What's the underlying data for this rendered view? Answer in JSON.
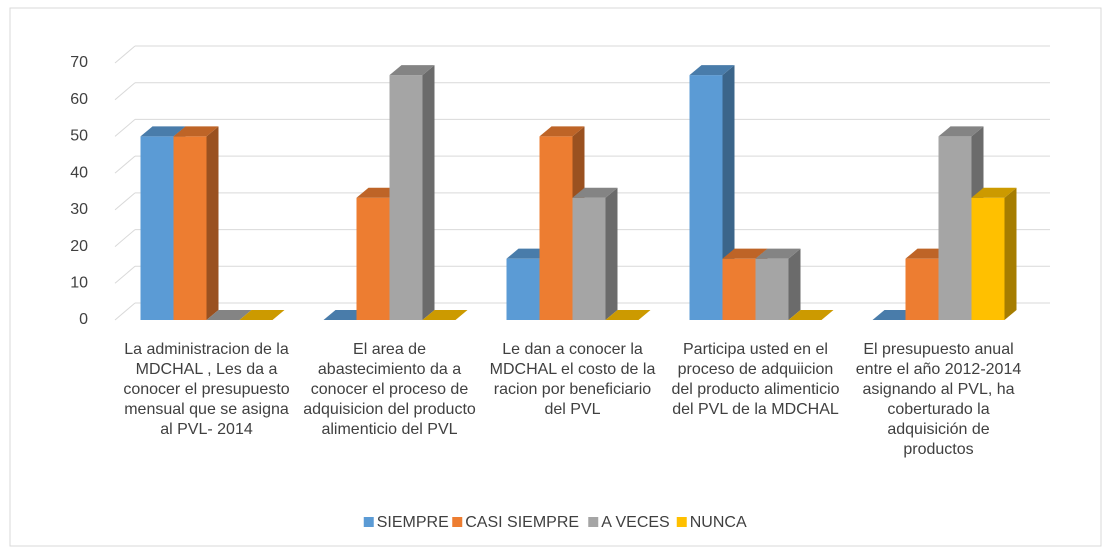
{
  "chart_data": {
    "type": "bar3d",
    "categories": [
      "La administracion de la MDCHAL , Les da a conocer el presupuesto mensual que se asigna al PVL- 2014",
      "El area de abastecimiento da a conocer el proceso de adquisicion del producto alimenticio del PVL",
      "Le dan a conocer la MDCHAL el costo de la racion por beneficiario del PVL",
      "Participa usted en el proceso de adquiicion del producto alimenticio del PVL de la MDCHAL",
      "El presupuesto anual entre el año 2012-2014 asignando al PVL, ha coberturado la adquisición de productos"
    ],
    "series": [
      {
        "name": "SIEMPRE",
        "color": "#5b9bd5",
        "values": [
          50,
          0,
          16.7,
          66.7,
          0
        ]
      },
      {
        "name": "CASI SIEMPRE",
        "color": "#ed7d31",
        "values": [
          50,
          33.3,
          50,
          16.7,
          16.7
        ]
      },
      {
        "name": "A VECES",
        "color": "#a5a5a5",
        "values": [
          0,
          66.7,
          33.3,
          16.7,
          50
        ]
      },
      {
        "name": "NUNCA",
        "color": "#ffc000",
        "values": [
          0,
          0,
          0,
          0,
          33.3
        ]
      }
    ],
    "ylim": [
      0,
      70
    ],
    "yticks": [
      0,
      10,
      20,
      30,
      40,
      50,
      60,
      70
    ],
    "grid": true,
    "legend": "bottom"
  }
}
